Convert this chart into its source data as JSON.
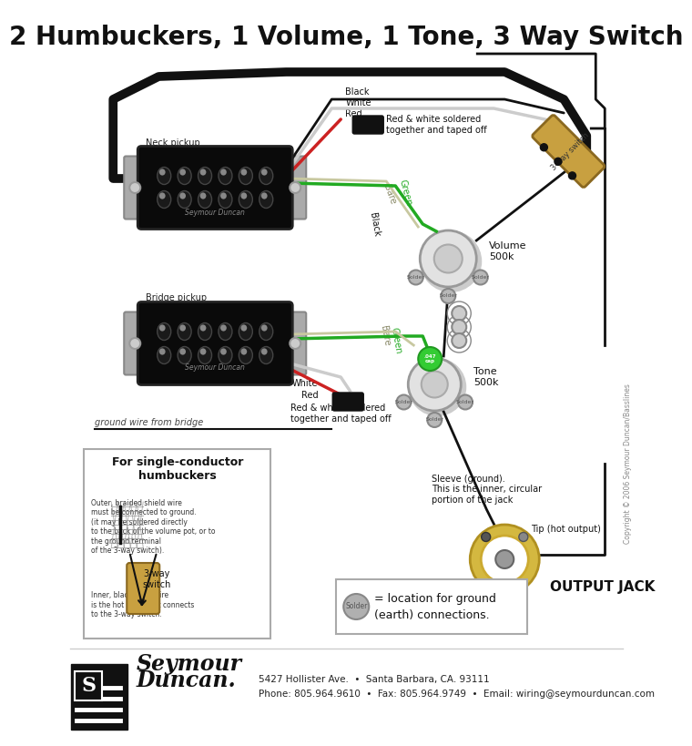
{
  "title": "2 Humbuckers, 1 Volume, 1 Tone, 3 Way Switch",
  "title_fontsize": 20,
  "title_fontweight": "bold",
  "bg_color": "#ffffff",
  "footer_line1": "5427 Hollister Ave.  •  Santa Barbara, CA. 93111",
  "footer_line2": "Phone: 805.964.9610  •  Fax: 805.964.9749  •  Email: wiring@seymourduncan.com",
  "copyright": "Copyright © 2006 Seymour Duncan/Basslines",
  "wire_black": "#111111",
  "wire_white": "#f0f0f0",
  "wire_red": "#cc2222",
  "wire_green": "#22aa22",
  "wire_bare": "#c8c8a0",
  "switch_color": "#c8a040",
  "solder_color": "#b0b0b0"
}
